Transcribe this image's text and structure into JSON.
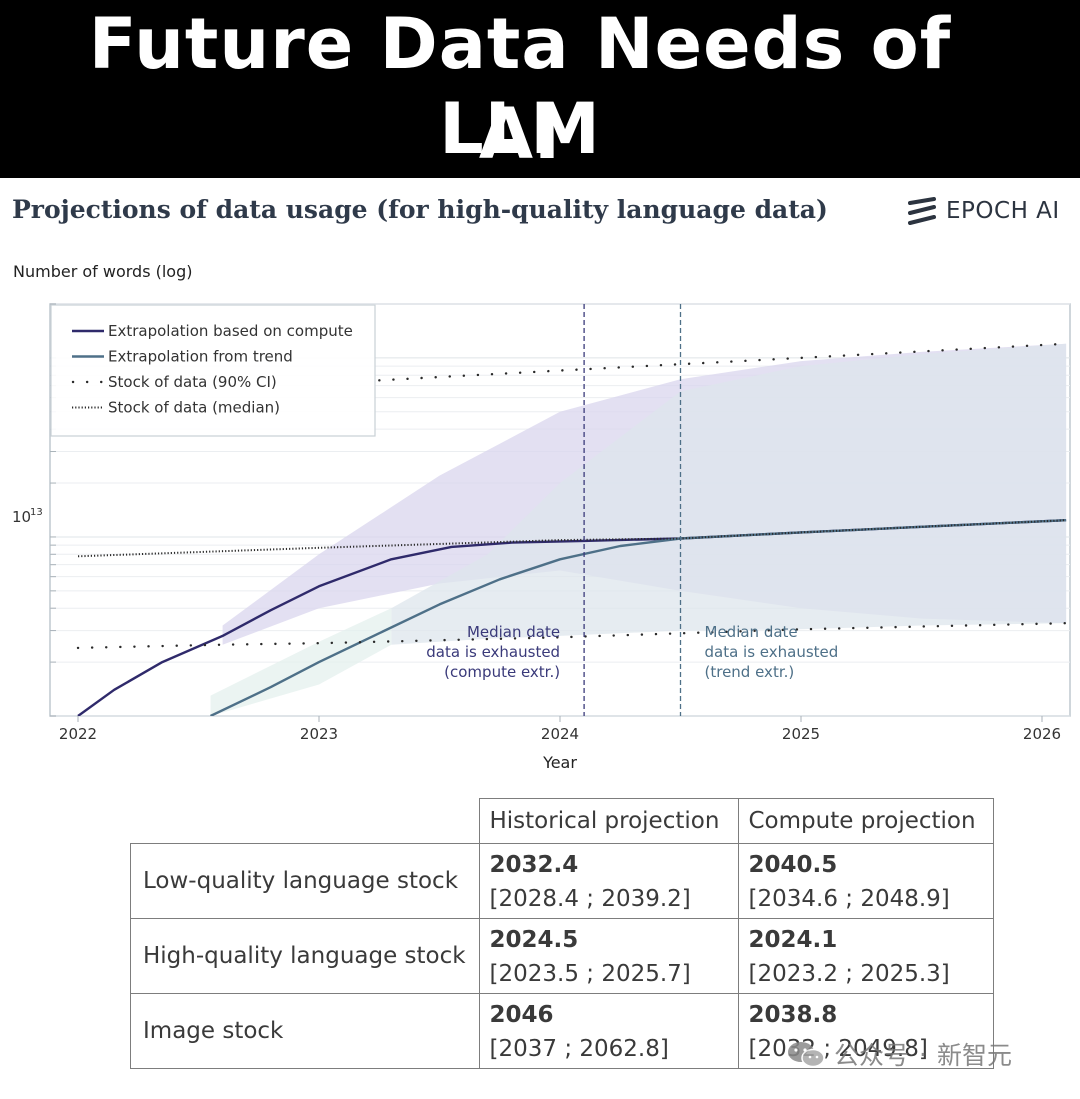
{
  "banner": {
    "line1": "Future Data Needs of LLM",
    "line2": "AI"
  },
  "logo": {
    "text": "EPOCH AI",
    "icon": "epoch-stripes-icon"
  },
  "watermark": {
    "left": "公众号",
    "sep": "·",
    "right": "新智元",
    "icon": "wechat-icon"
  },
  "chart_data": {
    "type": "line",
    "title": "Projections of data usage (for high-quality language data)",
    "ylabel": "Number of words (log)",
    "xlabel": "Year",
    "y_scale": "log",
    "xlim": [
      2022,
      2026.1
    ],
    "ylim": [
      1000000000000.0,
      200000000000000.0
    ],
    "x_ticks": [
      2022,
      2023,
      2024,
      2025,
      2026
    ],
    "y_tick_labels": [
      {
        "base": "10",
        "exp": "13",
        "value": 10000000000000.0
      }
    ],
    "grid": true,
    "legend_position": "top-left",
    "legend": [
      {
        "label": "Extrapolation based on compute",
        "style": "solid",
        "color": "#2f2a6b"
      },
      {
        "label": "Extrapolation from trend",
        "style": "solid",
        "color": "#4e7088"
      },
      {
        "label": "Stock of data (90% CI)",
        "style": "sparse-dotted",
        "color": "#2a2a2a"
      },
      {
        "label": "Stock of data (median)",
        "style": "dense-dotted",
        "color": "#2a2a2a"
      }
    ],
    "series": [
      {
        "name": "Extrapolation based on compute",
        "color": "#2f2a6b",
        "x": [
          2022.0,
          2022.15,
          2022.35,
          2022.6,
          2022.8,
          2023.0,
          2023.3,
          2023.55,
          2023.8,
          2024.1,
          2024.5,
          2025.0,
          2025.5,
          2026.1
        ],
        "y": [
          1000000000000.0,
          1400000000000.0,
          2000000000000.0,
          2800000000000.0,
          3900000000000.0,
          5300000000000.0,
          7500000000000.0,
          8800000000000.0,
          9300000000000.0,
          9500000000000.0,
          9800000000000.0,
          10600000000000.0,
          11400000000000.0,
          12400000000000.0
        ]
      },
      {
        "name": "Extrapolation from trend",
        "color": "#4e7088",
        "x": [
          2022.55,
          2022.8,
          2023.0,
          2023.25,
          2023.5,
          2023.75,
          2024.0,
          2024.25,
          2024.5,
          2025.0,
          2025.5,
          2026.1
        ],
        "y": [
          1000000000000.0,
          1450000000000.0,
          2000000000000.0,
          2900000000000.0,
          4200000000000.0,
          5800000000000.0,
          7500000000000.0,
          8900000000000.0,
          9800000000000.0,
          10600000000000.0,
          11400000000000.0,
          12400000000000.0
        ]
      },
      {
        "name": "Stock of data (median)",
        "style": "dense-dotted",
        "color": "#2a2a2a",
        "x": [
          2022.0,
          2023.0,
          2024.0,
          2024.5,
          2025.0,
          2025.5,
          2026.1
        ],
        "y": [
          7800000000000.0,
          8700000000000.0,
          9600000000000.0,
          9800000000000.0,
          10600000000000.0,
          11400000000000.0,
          12400000000000.0
        ]
      },
      {
        "name": "Stock of data (90% CI) upper",
        "style": "sparse-dotted",
        "color": "#2a2a2a",
        "x": [
          2023.25,
          2024.0,
          2025.0,
          2026.1
        ],
        "y": [
          75000000000000.0,
          85000000000000.0,
          100000000000000.0,
          120000000000000.0
        ]
      },
      {
        "name": "Stock of data (90% CI) lower",
        "style": "sparse-dotted",
        "color": "#2a2a2a",
        "x": [
          2022.0,
          2022.6,
          2023.0,
          2024.0,
          2025.0,
          2026.1
        ],
        "y": [
          2400000000000.0,
          2500000000000.0,
          2550000000000.0,
          2750000000000.0,
          3050000000000.0,
          3300000000000.0
        ]
      }
    ],
    "bands": [
      {
        "name": "compute-uncertainty",
        "color": "#d9d6ee",
        "x": [
          2022.6,
          2023.0,
          2023.5,
          2024.0,
          2024.5,
          2025.0,
          2025.5,
          2026.1
        ],
        "upper": [
          3200000000000.0,
          8000000000000.0,
          22000000000000.0,
          50000000000000.0,
          76000000000000.0,
          96000000000000.0,
          108000000000000.0,
          120000000000000.0
        ],
        "lower": [
          2500000000000.0,
          4000000000000.0,
          5500000000000.0,
          6500000000000.0,
          5000000000000.0,
          4000000000000.0,
          3500000000000.0,
          3300000000000.0
        ]
      },
      {
        "name": "trend-uncertainty",
        "color": "#dde5ec",
        "x": [
          2023.3,
          2023.7,
          2024.0,
          2024.5,
          2025.0,
          2025.5,
          2026.1
        ],
        "upper": [
          4000000000000.0,
          8000000000000.0,
          20000000000000.0,
          65000000000000.0,
          90000000000000.0,
          105000000000000.0,
          120000000000000.0
        ],
        "lower": [
          2500000000000.0,
          2700000000000.0,
          2800000000000.0,
          3000000000000.0,
          3050000000000.0,
          3200000000000.0,
          3300000000000.0
        ]
      },
      {
        "name": "trend-lower-tail",
        "color": "#e4f0ee",
        "x": [
          2022.55,
          2023.0,
          2023.3
        ],
        "upper": [
          1300000000000.0,
          2600000000000.0,
          4000000000000.0
        ],
        "lower": [
          1000000000000.0,
          1500000000000.0,
          2500000000000.0
        ]
      }
    ],
    "vlines": [
      {
        "x": 2024.1,
        "color": "#3a3a7a",
        "label": [
          "Median date",
          "data is exhausted",
          "(compute extr.)"
        ],
        "label_align": "right",
        "label_color": "#3a3a7a"
      },
      {
        "x": 2024.5,
        "color": "#4e7088",
        "label": [
          "Median date",
          "data is exhausted",
          "(trend extr.)"
        ],
        "label_align": "left",
        "label_color": "#4e7088"
      }
    ]
  },
  "table": {
    "headers": [
      "",
      "Historical projection",
      "Compute projection"
    ],
    "rows": [
      {
        "label": "Low-quality language stock",
        "hist_median": "2032.4",
        "hist_ci": "[2028.4 ; 2039.2]",
        "comp_median": "2040.5",
        "comp_ci": "[2034.6 ; 2048.9]"
      },
      {
        "label": "High-quality language stock",
        "hist_median": "2024.5",
        "hist_ci": "[2023.5 ; 2025.7]",
        "comp_median": "2024.1",
        "comp_ci": "[2023.2 ; 2025.3]"
      },
      {
        "label": "Image stock",
        "hist_median": "2046",
        "hist_ci": "[2037 ; 2062.8]",
        "comp_median": "2038.8",
        "comp_ci": "[2032 ; 2049.8]"
      }
    ]
  }
}
